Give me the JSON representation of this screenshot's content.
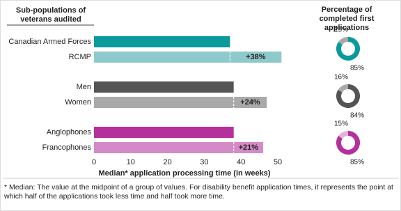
{
  "chart_data": [
    {
      "type": "hbar",
      "title": "Sub-populations of veterans audited",
      "x_label": "Median* application processing time (in weeks)",
      "categories": [
        "Canadian Armed Forces",
        "RCMP",
        "Men",
        "Women",
        "Anglophones",
        "Francophones"
      ],
      "values": [
        37,
        51,
        38,
        47,
        38,
        46
      ],
      "colors": [
        "#0b9a9c",
        "#8ec9cc",
        "#545454",
        "#a9a9a9",
        "#b5309c",
        "#d48ac6"
      ],
      "annotations": [
        "+38%",
        "+24%",
        "+21%"
      ],
      "xlim": [
        0,
        52
      ],
      "xticks": [
        0,
        10,
        20,
        30,
        40,
        50
      ],
      "note": "* Median: The value at the midpoint of a group of values. For disability benefit application times, it represents the point at which half of the applications took less time and half took more time."
    },
    {
      "type": "donut",
      "title": "Percentage of completed first applications",
      "series": [
        {
          "values": [
            15,
            85
          ],
          "value_labels": [
            "15%",
            "85%"
          ],
          "colors": [
            "#a9a9a9",
            "#0b9a9c"
          ]
        },
        {
          "values": [
            16,
            84
          ],
          "value_labels": [
            "16%",
            "84%"
          ],
          "colors": [
            "#a9a9a9",
            "#545454"
          ]
        },
        {
          "values": [
            15,
            85
          ],
          "value_labels": [
            "15%",
            "85%"
          ],
          "colors": [
            "#e4b2dc",
            "#b5309c"
          ]
        }
      ]
    }
  ]
}
